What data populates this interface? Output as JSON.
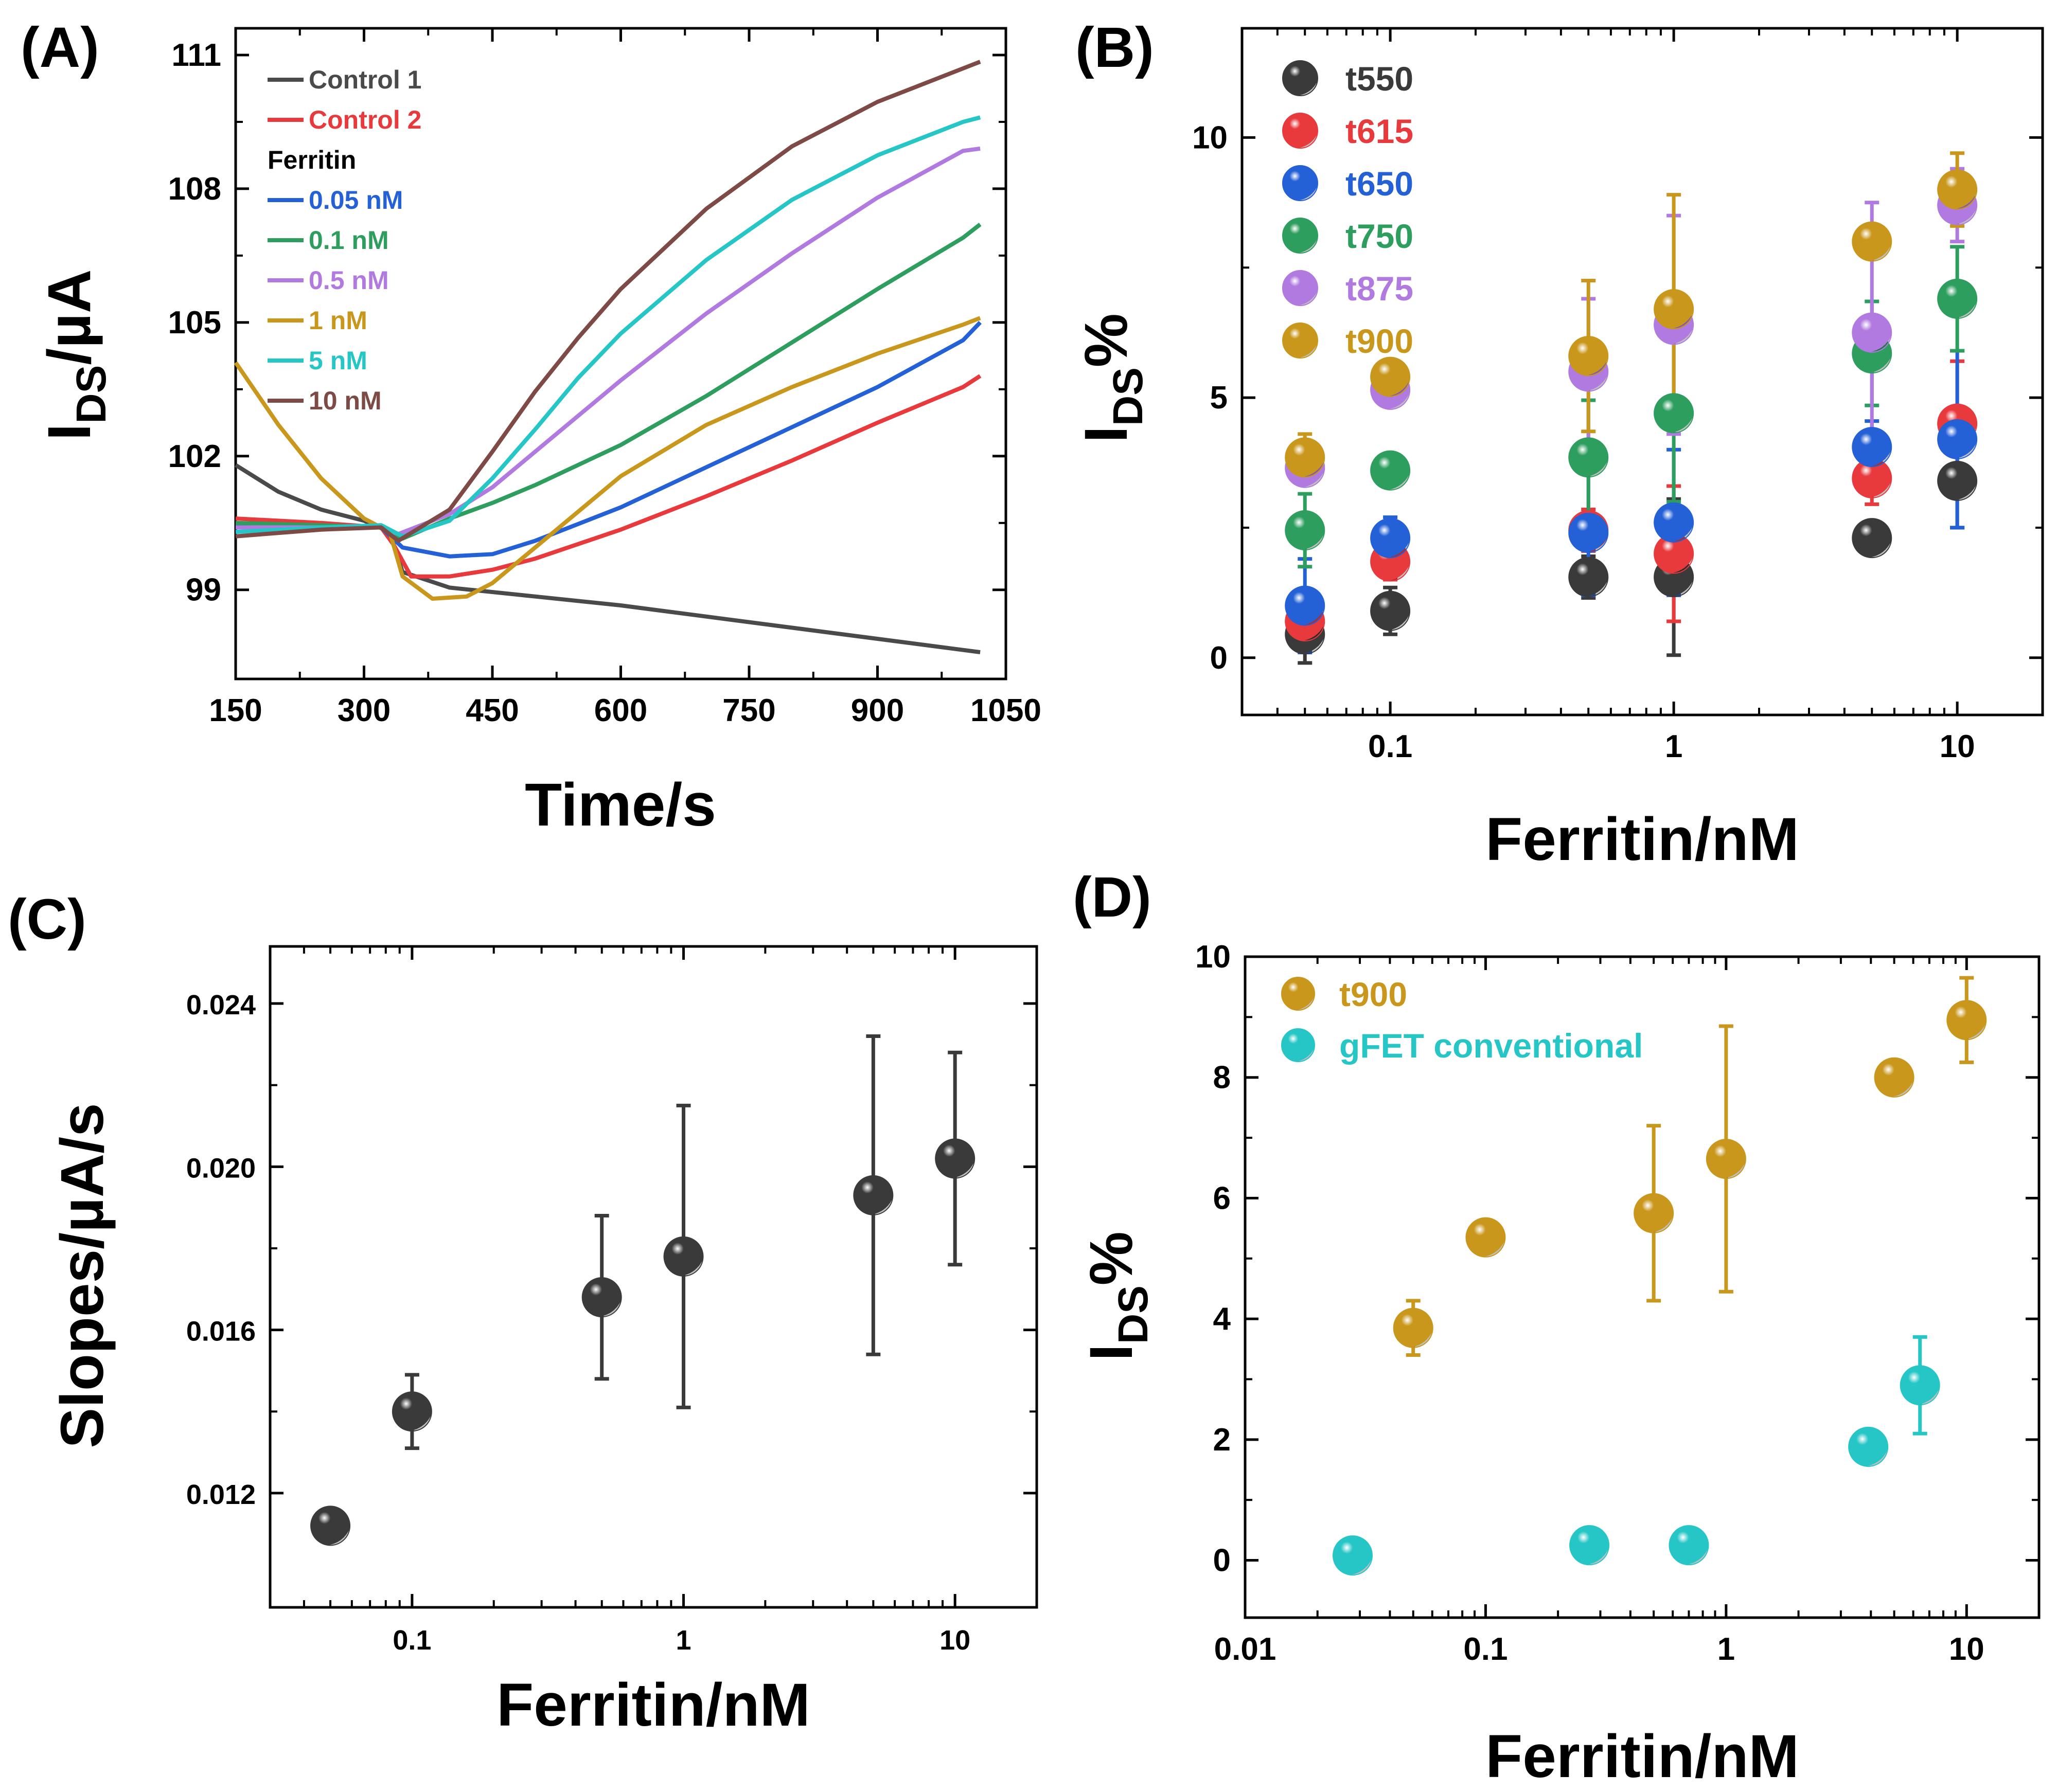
{
  "chart_data": [
    {
      "panel": "(A)",
      "type": "line",
      "xlabel": "Time/s",
      "ylabel": "I_DS/µA",
      "ylabel_main": "I",
      "ylabel_sub": "DS",
      "ylabel_rest": "/µA",
      "xlim": [
        150,
        1050
      ],
      "ylim": [
        97,
        111.6
      ],
      "xticks": [
        150,
        300,
        450,
        600,
        750,
        900,
        1050
      ],
      "xtick_labels": [
        "150",
        "300",
        "450",
        "600",
        "750",
        "900",
        "1050"
      ],
      "yticks": [
        99,
        102,
        105,
        108,
        111
      ],
      "ytick_labels": [
        "99",
        "102",
        "105",
        "108",
        "111"
      ],
      "legend_heading": "Ferritin",
      "series": [
        {
          "name": "Control 1",
          "color": "#4a4a4a",
          "points": [
            [
              150,
              101.8
            ],
            [
              200,
              101.2
            ],
            [
              250,
              100.8
            ],
            [
              300,
              100.55
            ],
            [
              330,
              100.3
            ],
            [
              345,
              99.4
            ],
            [
              400,
              99.05
            ],
            [
              500,
              98.85
            ],
            [
              600,
              98.65
            ],
            [
              700,
              98.4
            ],
            [
              800,
              98.15
            ],
            [
              900,
              97.9
            ],
            [
              1000,
              97.65
            ],
            [
              1020,
              97.6
            ]
          ]
        },
        {
          "name": "Control 2",
          "color": "#e8393d",
          "points": [
            [
              150,
              100.6
            ],
            [
              250,
              100.5
            ],
            [
              320,
              100.4
            ],
            [
              335,
              100
            ],
            [
              355,
              99.3
            ],
            [
              400,
              99.3
            ],
            [
              450,
              99.45
            ],
            [
              500,
              99.7
            ],
            [
              600,
              100.35
            ],
            [
              700,
              101.1
            ],
            [
              800,
              101.9
            ],
            [
              900,
              102.75
            ],
            [
              1000,
              103.55
            ],
            [
              1020,
              103.8
            ]
          ]
        },
        {
          "name": "0.05 nM",
          "color": "#2460d6",
          "points": [
            [
              150,
              100.45
            ],
            [
              250,
              100.45
            ],
            [
              320,
              100.4
            ],
            [
              345,
              99.95
            ],
            [
              400,
              99.75
            ],
            [
              450,
              99.8
            ],
            [
              500,
              100.1
            ],
            [
              600,
              100.85
            ],
            [
              700,
              101.75
            ],
            [
              800,
              102.65
            ],
            [
              900,
              103.55
            ],
            [
              1000,
              104.6
            ],
            [
              1020,
              105
            ]
          ]
        },
        {
          "name": "0.1 nM",
          "color": "#2e9e5e",
          "points": [
            [
              150,
              100.5
            ],
            [
              250,
              100.45
            ],
            [
              320,
              100.4
            ],
            [
              345,
              100.15
            ],
            [
              400,
              100.6
            ],
            [
              450,
              100.95
            ],
            [
              500,
              101.35
            ],
            [
              600,
              102.25
            ],
            [
              700,
              103.35
            ],
            [
              800,
              104.55
            ],
            [
              900,
              105.75
            ],
            [
              1000,
              106.9
            ],
            [
              1020,
              107.2
            ]
          ]
        },
        {
          "name": "0.5 nM",
          "color": "#b07ae0",
          "points": [
            [
              150,
              100.4
            ],
            [
              250,
              100.4
            ],
            [
              320,
              100.4
            ],
            [
              340,
              100.25
            ],
            [
              400,
              100.7
            ],
            [
              450,
              101.3
            ],
            [
              500,
              102.1
            ],
            [
              600,
              103.7
            ],
            [
              700,
              105.2
            ],
            [
              800,
              106.55
            ],
            [
              900,
              107.8
            ],
            [
              1000,
              108.85
            ],
            [
              1020,
              108.9
            ]
          ]
        },
        {
          "name": "1 nM",
          "color": "#c9971c",
          "points": [
            [
              150,
              104.1
            ],
            [
              200,
              102.7
            ],
            [
              250,
              101.5
            ],
            [
              300,
              100.6
            ],
            [
              330,
              100.3
            ],
            [
              345,
              99.3
            ],
            [
              380,
              98.8
            ],
            [
              420,
              98.85
            ],
            [
              450,
              99.15
            ],
            [
              500,
              99.95
            ],
            [
              600,
              101.55
            ],
            [
              700,
              102.7
            ],
            [
              800,
              103.55
            ],
            [
              900,
              104.3
            ],
            [
              1000,
              104.95
            ],
            [
              1020,
              105.1
            ]
          ]
        },
        {
          "name": "5 nM",
          "color": "#27c6c6",
          "points": [
            [
              150,
              100.3
            ],
            [
              250,
              100.4
            ],
            [
              320,
              100.45
            ],
            [
              345,
              100.2
            ],
            [
              400,
              100.55
            ],
            [
              450,
              101.5
            ],
            [
              500,
              102.6
            ],
            [
              550,
              103.75
            ],
            [
              600,
              104.75
            ],
            [
              700,
              106.4
            ],
            [
              800,
              107.75
            ],
            [
              900,
              108.75
            ],
            [
              1000,
              109.5
            ],
            [
              1020,
              109.6
            ]
          ]
        },
        {
          "name": "10 nM",
          "color": "#7e4a45",
          "points": [
            [
              150,
              100.2
            ],
            [
              250,
              100.35
            ],
            [
              320,
              100.4
            ],
            [
              340,
              100.1
            ],
            [
              400,
              100.8
            ],
            [
              450,
              102.1
            ],
            [
              500,
              103.45
            ],
            [
              550,
              104.65
            ],
            [
              600,
              105.75
            ],
            [
              700,
              107.55
            ],
            [
              800,
              108.95
            ],
            [
              900,
              109.95
            ],
            [
              1000,
              110.7
            ],
            [
              1020,
              110.85
            ]
          ]
        }
      ]
    },
    {
      "panel": "(B)",
      "type": "scatter",
      "xscale": "log",
      "xlabel": "Ferritin/nM",
      "ylabel": "I_DS%",
      "ylabel_main": "I",
      "ylabel_sub": "DS",
      "ylabel_rest": "%",
      "xlim": [
        0.03,
        20
      ],
      "ylim": [
        -1.1,
        12.1
      ],
      "xticks": [
        0.1,
        1,
        10
      ],
      "xtick_labels": [
        "0.1",
        "1",
        "10"
      ],
      "yticks": [
        0,
        5,
        10
      ],
      "ytick_labels": [
        "0",
        "5",
        "10"
      ],
      "x": [
        0.05,
        0.1,
        0.5,
        1,
        5,
        10
      ],
      "series": [
        {
          "name": "t550",
          "color": "#3a3a3a",
          "values": [
            0.45,
            0.9,
            1.55,
            1.55,
            2.3,
            3.4
          ],
          "err": [
            0.55,
            0.45,
            0.4,
            1.5,
            0,
            0.9
          ]
        },
        {
          "name": "t615",
          "color": "#e8393d",
          "values": [
            0.7,
            1.85,
            2.45,
            2.0,
            3.45,
            4.5
          ],
          "err": [
            0.5,
            0.35,
            0.4,
            1.3,
            0.5,
            1.2
          ]
        },
        {
          "name": "t650",
          "color": "#2460d6",
          "values": [
            1.0,
            2.3,
            2.4,
            2.6,
            4.05,
            4.2
          ],
          "err": [
            0.9,
            0.4,
            1.2,
            1.4,
            0.5,
            1.7
          ]
        },
        {
          "name": "t750",
          "color": "#2e9e5e",
          "values": [
            2.45,
            3.6,
            3.85,
            4.7,
            5.85,
            6.9
          ],
          "err": [
            0.7,
            0,
            1.1,
            1.7,
            1.0,
            1.0
          ]
        },
        {
          "name": "t875",
          "color": "#b07ae0",
          "values": [
            3.65,
            5.15,
            5.5,
            6.4,
            6.25,
            8.7
          ],
          "err": [
            0.25,
            0,
            1.4,
            2.1,
            2.5,
            0.7
          ]
        },
        {
          "name": "t900",
          "color": "#c9971c",
          "values": [
            3.85,
            5.4,
            5.8,
            6.7,
            8.0,
            9.0
          ],
          "err": [
            0.45,
            0,
            1.45,
            2.2,
            0,
            0.7
          ]
        }
      ]
    },
    {
      "panel": "(C)",
      "type": "scatter",
      "xscale": "log",
      "xlabel": "Ferritin/nM",
      "ylabel": "Slopes/µA/s",
      "xlim": [
        0.03,
        20
      ],
      "ylim": [
        0.0092,
        0.0254
      ],
      "xticks": [
        0.1,
        1,
        10
      ],
      "xtick_labels": [
        "0.1",
        "1",
        "10"
      ],
      "yticks": [
        0.012,
        0.016,
        0.02,
        0.024
      ],
      "ytick_labels": [
        "0.012",
        "0.016",
        "0.020",
        "0.024"
      ],
      "x": [
        0.05,
        0.1,
        0.5,
        1,
        5,
        10
      ],
      "series": [
        {
          "name": "Slopes",
          "color": "#3a3a3a",
          "values": [
            0.0112,
            0.014,
            0.0168,
            0.0178,
            0.0193,
            0.0202
          ],
          "err": [
            0,
            0.0009,
            0.002,
            0.0037,
            0.0039,
            0.0026
          ]
        }
      ]
    },
    {
      "panel": "(D)",
      "type": "scatter",
      "xscale": "log",
      "xlabel": "Ferritin/nM",
      "ylabel": "I_DS%",
      "ylabel_main": "I",
      "ylabel_sub": "DS",
      "ylabel_rest": "%",
      "xlim": [
        0.01,
        20
      ],
      "ylim": [
        -0.95,
        10
      ],
      "xticks": [
        0.01,
        0.1,
        1,
        10
      ],
      "xtick_labels": [
        "0.01",
        "0.1",
        "1",
        "10"
      ],
      "yticks": [
        0,
        2,
        4,
        6,
        8,
        10
      ],
      "ytick_labels": [
        "0",
        "2",
        "4",
        "6",
        "8",
        "10"
      ],
      "series": [
        {
          "name": "t900",
          "color": "#c9971c",
          "x": [
            0.05,
            0.1,
            0.5,
            1,
            5,
            10
          ],
          "values": [
            3.85,
            5.35,
            5.75,
            6.65,
            8.0,
            8.95
          ],
          "err": [
            0.45,
            0,
            1.45,
            2.2,
            0,
            0.7
          ]
        },
        {
          "name": "gFET conventional",
          "color": "#27c6c6",
          "x": [
            0.028,
            0.27,
            0.7,
            3.9,
            6.4
          ],
          "values": [
            0.08,
            0.25,
            0.25,
            1.88,
            2.9
          ],
          "err": [
            0,
            0,
            0,
            0,
            0.8
          ]
        }
      ]
    }
  ]
}
